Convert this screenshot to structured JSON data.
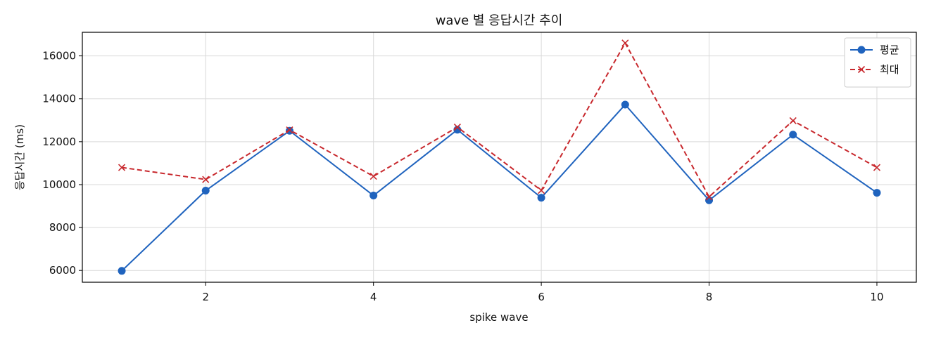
{
  "chart_data": {
    "type": "line",
    "title": "wave 별 응답시간 추이",
    "xlabel": "spike wave",
    "ylabel": "응답시간 (ms)",
    "x": [
      1,
      2,
      3,
      4,
      5,
      6,
      7,
      8,
      9,
      10
    ],
    "xlim": [
      0.53,
      10.47
    ],
    "ylim": [
      5450,
      17100
    ],
    "xticks": [
      2,
      4,
      6,
      8,
      10
    ],
    "yticks": [
      6000,
      8000,
      10000,
      12000,
      14000,
      16000
    ],
    "grid": true,
    "legend_position": "top-right",
    "series": [
      {
        "name": "평균",
        "color": "#1f63be",
        "marker": "circle",
        "linestyle": "solid",
        "values": [
          5980,
          9720,
          12510,
          9490,
          12560,
          9390,
          13730,
          9270,
          12330,
          9620
        ]
      },
      {
        "name": "최대",
        "color": "#c8282d",
        "marker": "x",
        "linestyle": "dashed",
        "values": [
          10800,
          10240,
          12550,
          10390,
          12680,
          9730,
          16600,
          9430,
          12980,
          10800
        ]
      }
    ]
  }
}
